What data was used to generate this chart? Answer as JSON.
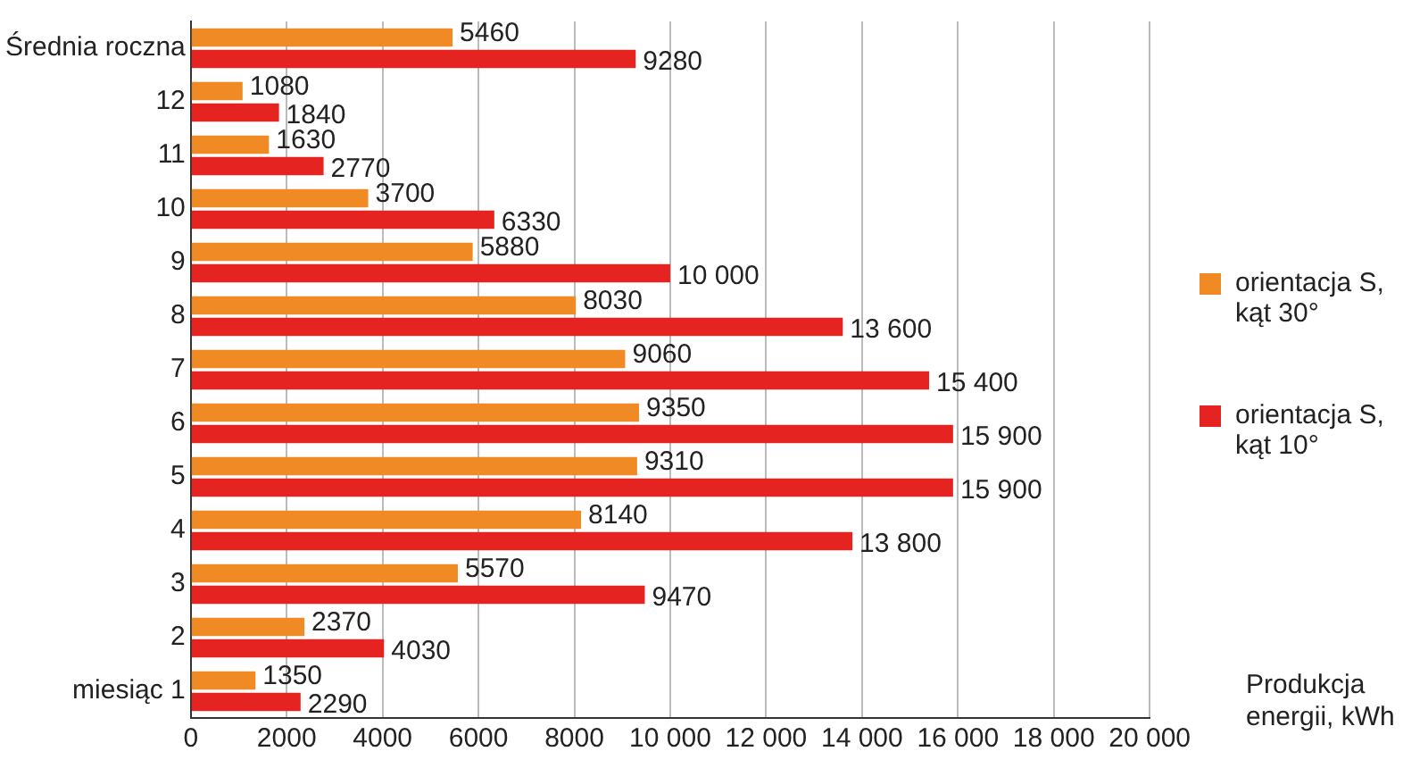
{
  "chart_data": {
    "type": "bar",
    "orientation": "horizontal",
    "categories": [
      "Średnia roczna",
      "12",
      "11",
      "10",
      "9",
      "8",
      "7",
      "6",
      "5",
      "4",
      "3",
      "2",
      "miesiąc 1"
    ],
    "series": [
      {
        "name": "orientacja S, kąt 30°",
        "color": "#f08a24",
        "values": [
          5460,
          1080,
          1630,
          3700,
          5880,
          8030,
          9060,
          9350,
          9310,
          8140,
          5570,
          2370,
          1350
        ],
        "value_labels": [
          "5460",
          "1080",
          "1630",
          "3700",
          "5880",
          "8030",
          "9060",
          "9350",
          "9310",
          "8140",
          "5570",
          "2370",
          "1350"
        ]
      },
      {
        "name": "orientacja S, kąt 10°",
        "color": "#e52421",
        "values": [
          9280,
          1840,
          2770,
          6330,
          10000,
          13600,
          15400,
          15900,
          15900,
          13800,
          9470,
          4030,
          2290
        ],
        "value_labels": [
          "9280",
          "1840",
          "2770",
          "6330",
          "10 000",
          "13 600",
          "15 400",
          "15 900",
          "15 900",
          "13 800",
          "9470",
          "4030",
          "2290"
        ]
      }
    ],
    "xlabel": "Produkcja energii, kWh",
    "xlim": [
      0,
      20000
    ],
    "xticks": [
      0,
      2000,
      4000,
      6000,
      8000,
      {
        "value": 10000,
        "label": "10 000"
      },
      {
        "value": 12000,
        "label": "12 000"
      },
      {
        "value": 14000,
        "label": "14 000"
      },
      {
        "value": 16000,
        "label": "16 000"
      },
      {
        "value": 18000,
        "label": "18 000"
      },
      {
        "value": 20000,
        "label": "20 000"
      }
    ],
    "grid": "x",
    "legend": "right"
  }
}
